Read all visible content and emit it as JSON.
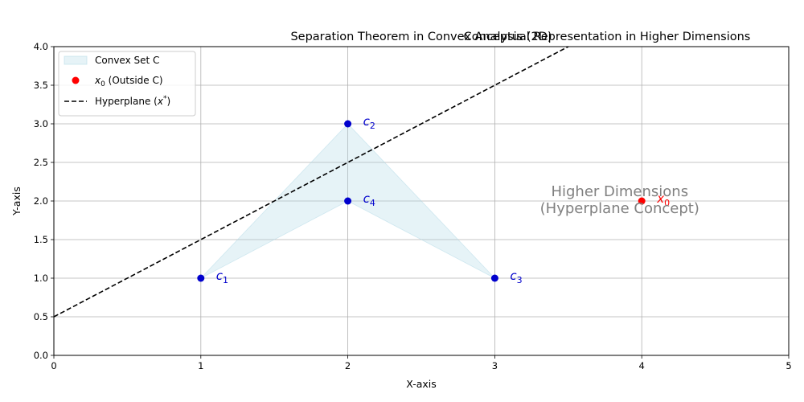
{
  "chart_data": {
    "type": "scatter",
    "titles": [
      "Separation Theorem in Convex Analysis (2D)",
      "Conceptual Representation in Higher Dimensions"
    ],
    "xlabel": "X-axis",
    "ylabel": "Y-axis",
    "xlim": [
      0,
      5
    ],
    "ylim": [
      0,
      4
    ],
    "xticks": [
      0,
      1,
      2,
      3,
      4,
      5
    ],
    "yticks": [
      0.0,
      0.5,
      1.0,
      1.5,
      2.0,
      2.5,
      3.0,
      3.5,
      4.0
    ],
    "grid": true,
    "legend_position": "top-left",
    "convex_set": {
      "name": "Convex Set C",
      "color": "#add8e6",
      "polygon": [
        [
          1,
          1
        ],
        [
          2,
          3
        ],
        [
          3,
          1
        ],
        [
          2,
          2
        ]
      ]
    },
    "points": [
      {
        "label": "c",
        "sub": "1",
        "x": 1,
        "y": 1,
        "color": "#0000cd"
      },
      {
        "label": "c",
        "sub": "2",
        "x": 2,
        "y": 3,
        "color": "#0000cd"
      },
      {
        "label": "c",
        "sub": "3",
        "x": 3,
        "y": 1,
        "color": "#0000cd"
      },
      {
        "label": "c",
        "sub": "4",
        "x": 2,
        "y": 2,
        "color": "#0000cd"
      }
    ],
    "outside_point": {
      "label": "x",
      "sub": "0",
      "x": 4,
      "y": 2,
      "color": "#ff0000"
    },
    "hyperplane": {
      "slope": 1,
      "intercept": 0.5,
      "color": "#000000"
    },
    "legend": [
      {
        "kind": "patch",
        "text": "Convex Set C"
      },
      {
        "kind": "point",
        "sym": "x",
        "sub": "0",
        "text": " (Outside C)"
      },
      {
        "kind": "line",
        "text": "Hyperplane (",
        "sym": "x",
        "sup": "*",
        "tail": ")"
      }
    ],
    "annotation": {
      "lines": [
        "Higher Dimensions",
        "(Hyperplane Concept)"
      ],
      "x": 3.85,
      "y": 2.0,
      "color": "#808080"
    }
  }
}
